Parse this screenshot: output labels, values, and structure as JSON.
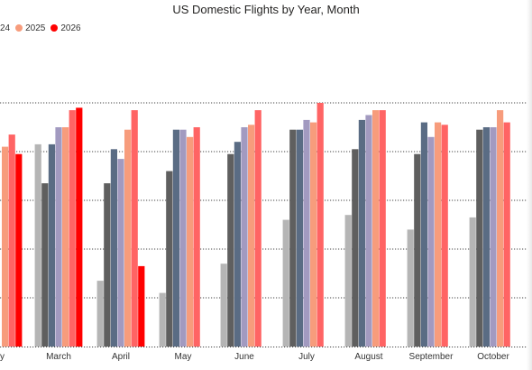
{
  "chart_data": {
    "type": "bar",
    "title": "US Domestic Flights by Year, Month",
    "categories": [
      "ary",
      "March",
      "April",
      "May",
      "June",
      "July",
      "August",
      "September",
      "October"
    ],
    "legend": {
      "position": "top-left",
      "visible_entries": [
        {
          "label": "24",
          "color": "#FFA27A"
        },
        {
          "label": "2025",
          "color": "#F28E7F"
        },
        {
          "label": "2026",
          "color": "#FF0000"
        }
      ]
    },
    "series": [
      {
        "color": "#B5B5B5",
        "values": [
          null,
          83,
          27,
          22,
          34,
          52,
          54,
          48,
          53
        ]
      },
      {
        "color": "#5F5F5F",
        "values": [
          null,
          67,
          67,
          72,
          79,
          89,
          81,
          79,
          89
        ]
      },
      {
        "color": "#5A6C84",
        "values": [
          null,
          83,
          81,
          89,
          84,
          89,
          93,
          92,
          90
        ]
      },
      {
        "color": "#A29AC0",
        "values": [
          null,
          90,
          77,
          89,
          90,
          93,
          95,
          86,
          90
        ]
      },
      {
        "color": "#F79C7C",
        "values": [
          82,
          90,
          89,
          86,
          91,
          92,
          97,
          92,
          97
        ]
      },
      {
        "color": "#FF6464",
        "values": [
          87,
          97,
          97,
          90,
          97,
          100,
          97,
          91,
          92
        ]
      },
      {
        "color": "#FF0000",
        "values": [
          79,
          98,
          33,
          null,
          null,
          null,
          null,
          null,
          null
        ]
      }
    ],
    "ylim": [
      0,
      100
    ],
    "grid": true,
    "gridline_count": 5,
    "xlabel": "",
    "ylabel": ""
  }
}
